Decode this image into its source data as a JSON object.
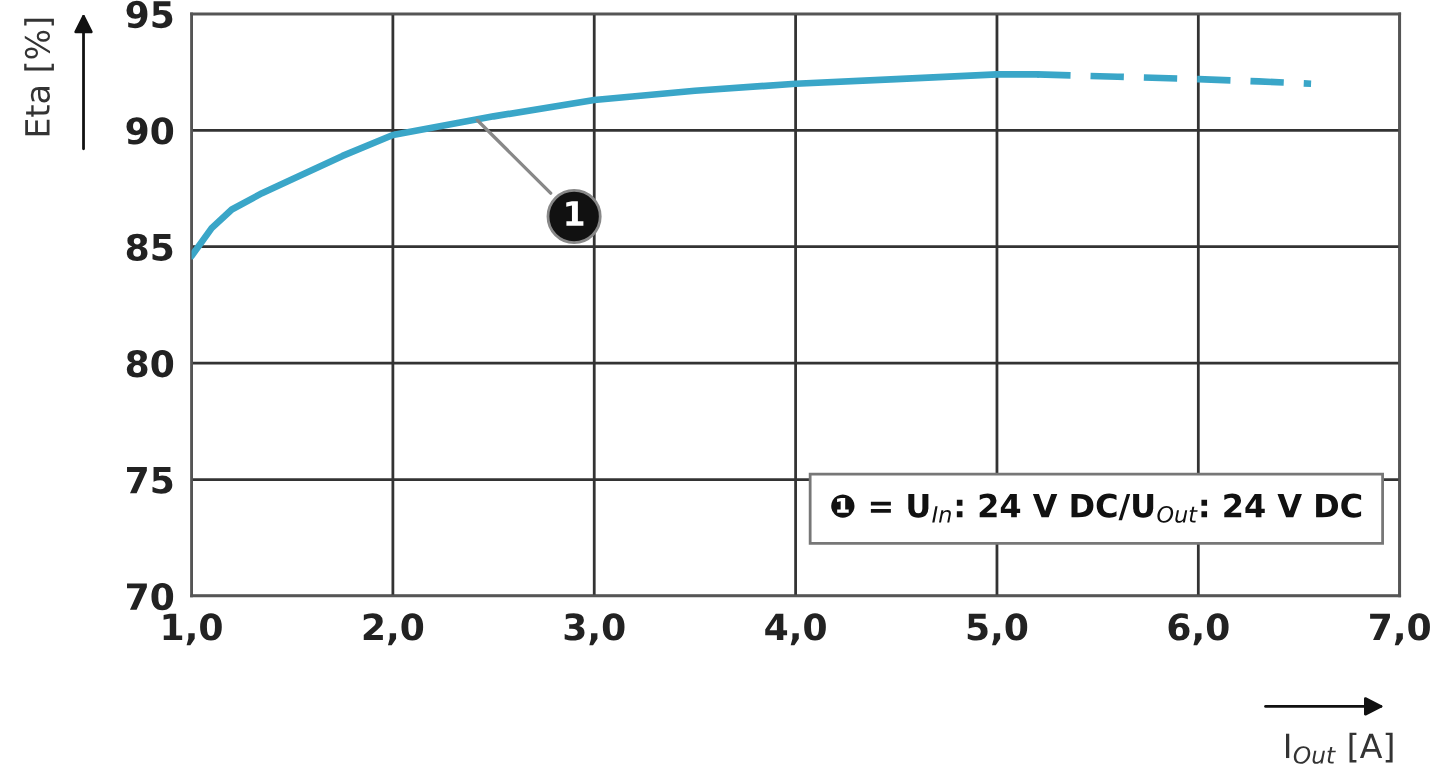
{
  "chart_data": {
    "type": "line",
    "xlabel": "I$_{Out}$ [A]",
    "ylabel": "Eta [%]",
    "series": [
      {
        "color": "#3aa6c8",
        "line_style": "solid",
        "x": [
          1.0,
          1.05,
          1.1,
          1.2,
          1.35,
          1.5,
          1.75,
          2.0,
          2.5,
          3.0,
          3.5,
          4.0,
          4.5,
          5.0,
          5.2
        ],
        "values": [
          84.6,
          85.2,
          85.8,
          86.6,
          87.3,
          87.9,
          88.9,
          89.8,
          90.6,
          91.3,
          91.7,
          92.0,
          92.2,
          92.4,
          92.4
        ]
      },
      {
        "color": "#3aa6c8",
        "line_style": "dashed",
        "x": [
          5.2,
          5.6,
          6.0,
          6.3,
          6.56
        ],
        "values": [
          92.4,
          92.3,
          92.2,
          92.1,
          92.0
        ]
      }
    ],
    "xlim": [
      1.0,
      7.0
    ],
    "ylim": [
      70,
      95
    ],
    "xticks": [
      {
        "value": 1,
        "label": "1,0"
      },
      {
        "value": 2,
        "label": "2,0"
      },
      {
        "value": 3,
        "label": "3,0"
      },
      {
        "value": 4,
        "label": "4,0"
      },
      {
        "value": 5,
        "label": "5,0"
      },
      {
        "value": 6,
        "label": "6,0"
      },
      {
        "value": 7,
        "label": "7,0"
      }
    ],
    "yticks": [
      70,
      75,
      80,
      85,
      90,
      95
    ],
    "grid": true,
    "legend": false,
    "marker": "none",
    "annotations": [
      {
        "text": "1",
        "x": 2.4,
        "y": 90.6
      },
      "❶ = U$_{In}$: 24 V DC/U$_{Out}$: 24 V DC"
    ]
  }
}
